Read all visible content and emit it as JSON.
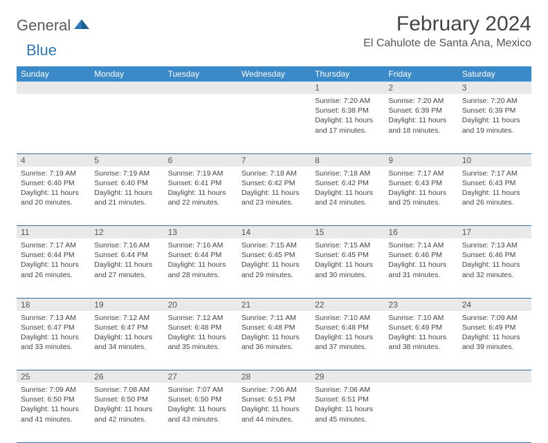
{
  "brand": {
    "part1": "General",
    "part2": "Blue"
  },
  "title": "February 2024",
  "location": "El Cahulote de Santa Ana, Mexico",
  "colors": {
    "header_bg": "#3a89c9",
    "header_text": "#ffffff",
    "daynum_bg": "#e9e9e9",
    "row_border": "#2f6ea0",
    "brand_blue": "#2f78b7",
    "brand_gray": "#5a5a5a"
  },
  "weekdays": [
    "Sunday",
    "Monday",
    "Tuesday",
    "Wednesday",
    "Thursday",
    "Friday",
    "Saturday"
  ],
  "weeks": [
    [
      null,
      null,
      null,
      null,
      {
        "n": "1",
        "sr": "7:20 AM",
        "ss": "6:38 PM",
        "dl": "11 hours and 17 minutes."
      },
      {
        "n": "2",
        "sr": "7:20 AM",
        "ss": "6:39 PM",
        "dl": "11 hours and 18 minutes."
      },
      {
        "n": "3",
        "sr": "7:20 AM",
        "ss": "6:39 PM",
        "dl": "11 hours and 19 minutes."
      }
    ],
    [
      {
        "n": "4",
        "sr": "7:19 AM",
        "ss": "6:40 PM",
        "dl": "11 hours and 20 minutes."
      },
      {
        "n": "5",
        "sr": "7:19 AM",
        "ss": "6:40 PM",
        "dl": "11 hours and 21 minutes."
      },
      {
        "n": "6",
        "sr": "7:19 AM",
        "ss": "6:41 PM",
        "dl": "11 hours and 22 minutes."
      },
      {
        "n": "7",
        "sr": "7:18 AM",
        "ss": "6:42 PM",
        "dl": "11 hours and 23 minutes."
      },
      {
        "n": "8",
        "sr": "7:18 AM",
        "ss": "6:42 PM",
        "dl": "11 hours and 24 minutes."
      },
      {
        "n": "9",
        "sr": "7:17 AM",
        "ss": "6:43 PM",
        "dl": "11 hours and 25 minutes."
      },
      {
        "n": "10",
        "sr": "7:17 AM",
        "ss": "6:43 PM",
        "dl": "11 hours and 26 minutes."
      }
    ],
    [
      {
        "n": "11",
        "sr": "7:17 AM",
        "ss": "6:44 PM",
        "dl": "11 hours and 26 minutes."
      },
      {
        "n": "12",
        "sr": "7:16 AM",
        "ss": "6:44 PM",
        "dl": "11 hours and 27 minutes."
      },
      {
        "n": "13",
        "sr": "7:16 AM",
        "ss": "6:44 PM",
        "dl": "11 hours and 28 minutes."
      },
      {
        "n": "14",
        "sr": "7:15 AM",
        "ss": "6:45 PM",
        "dl": "11 hours and 29 minutes."
      },
      {
        "n": "15",
        "sr": "7:15 AM",
        "ss": "6:45 PM",
        "dl": "11 hours and 30 minutes."
      },
      {
        "n": "16",
        "sr": "7:14 AM",
        "ss": "6:46 PM",
        "dl": "11 hours and 31 minutes."
      },
      {
        "n": "17",
        "sr": "7:13 AM",
        "ss": "6:46 PM",
        "dl": "11 hours and 32 minutes."
      }
    ],
    [
      {
        "n": "18",
        "sr": "7:13 AM",
        "ss": "6:47 PM",
        "dl": "11 hours and 33 minutes."
      },
      {
        "n": "19",
        "sr": "7:12 AM",
        "ss": "6:47 PM",
        "dl": "11 hours and 34 minutes."
      },
      {
        "n": "20",
        "sr": "7:12 AM",
        "ss": "6:48 PM",
        "dl": "11 hours and 35 minutes."
      },
      {
        "n": "21",
        "sr": "7:11 AM",
        "ss": "6:48 PM",
        "dl": "11 hours and 36 minutes."
      },
      {
        "n": "22",
        "sr": "7:10 AM",
        "ss": "6:48 PM",
        "dl": "11 hours and 37 minutes."
      },
      {
        "n": "23",
        "sr": "7:10 AM",
        "ss": "6:49 PM",
        "dl": "11 hours and 38 minutes."
      },
      {
        "n": "24",
        "sr": "7:09 AM",
        "ss": "6:49 PM",
        "dl": "11 hours and 39 minutes."
      }
    ],
    [
      {
        "n": "25",
        "sr": "7:09 AM",
        "ss": "6:50 PM",
        "dl": "11 hours and 41 minutes."
      },
      {
        "n": "26",
        "sr": "7:08 AM",
        "ss": "6:50 PM",
        "dl": "11 hours and 42 minutes."
      },
      {
        "n": "27",
        "sr": "7:07 AM",
        "ss": "6:50 PM",
        "dl": "11 hours and 43 minutes."
      },
      {
        "n": "28",
        "sr": "7:06 AM",
        "ss": "6:51 PM",
        "dl": "11 hours and 44 minutes."
      },
      {
        "n": "29",
        "sr": "7:06 AM",
        "ss": "6:51 PM",
        "dl": "11 hours and 45 minutes."
      },
      null,
      null
    ]
  ],
  "labels": {
    "sunrise": "Sunrise: ",
    "sunset": "Sunset: ",
    "daylight": "Daylight: "
  }
}
